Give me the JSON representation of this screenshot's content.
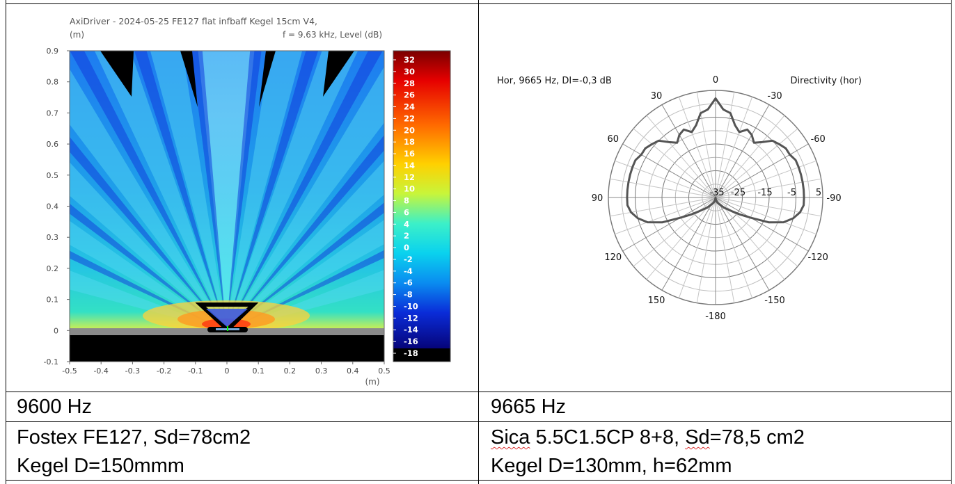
{
  "left_figure": {
    "title_line1": "AxiDriver - 2024-05-25 FE127 flat infbaff Kegel 15cm V4,",
    "y_unit": "(m)",
    "title_line2": "f = 9.63 kHz, Level  (dB)",
    "x_unit": "(m)",
    "x_ticks": [
      "-0.5",
      "-0.4",
      "-0.3",
      "-0.2",
      "-0.1",
      "0",
      "0.1",
      "0.2",
      "0.3",
      "0.4",
      "0.5"
    ],
    "y_ticks": [
      "0.9",
      "0.8",
      "0.7",
      "0.6",
      "0.5",
      "0.4",
      "0.3",
      "0.2",
      "0.1",
      "0",
      "-0.1"
    ],
    "colorbar_labels": [
      "32",
      "30",
      "28",
      "26",
      "24",
      "22",
      "20",
      "18",
      "16",
      "14",
      "12",
      "10",
      "8",
      "6",
      "4",
      "2",
      "0",
      "-2",
      "-4",
      "-6",
      "-8",
      "-10",
      "-12",
      "-14",
      "-16",
      "-18"
    ]
  },
  "right_figure": {
    "title_left": "Hor, 9665 Hz, DI=-0,3 dB",
    "title_right": "Directivity (hor)",
    "angle_labels": {
      "a0": "0",
      "a30": "30",
      "am30": "-30",
      "a60": "60",
      "am60": "-60",
      "a90": "90",
      "am90": "-90",
      "a120": "120",
      "am120": "-120",
      "a150": "150",
      "am150": "-150",
      "a180": "-180"
    },
    "radial_labels": [
      "-35",
      "-25",
      "-15",
      "-5",
      "5"
    ]
  },
  "chart_data": {
    "type": "line",
    "projection": "polar",
    "title": "Directivity (hor)",
    "subtitle": "Hor, 9665 Hz, DI=-0,3 dB",
    "radial_range_db": [
      -35,
      5
    ],
    "radial_ticks": [
      -35,
      -25,
      -15,
      -5,
      5
    ],
    "angle_ticks": [
      0,
      30,
      60,
      90,
      120,
      150,
      180,
      -150,
      -120,
      -90,
      -60,
      -30
    ],
    "series": [
      {
        "angle_deg": [
          0,
          5,
          10,
          15,
          20,
          25,
          30,
          35,
          40,
          45,
          50,
          55,
          60,
          65,
          70,
          75,
          80,
          85,
          90,
          95,
          100,
          105,
          110,
          115,
          120,
          125,
          130,
          140,
          150,
          160,
          170,
          180
        ],
        "level_db": [
          2,
          -2,
          -3,
          -7,
          -9,
          -7,
          -8,
          -10,
          -8,
          -5,
          -4,
          -3,
          -3,
          -2,
          -2,
          -2,
          -2,
          -2,
          -2,
          -2,
          -3,
          -5,
          -8,
          -13,
          -20,
          -24,
          -27,
          -30,
          -32,
          -33,
          -34,
          -35
        ]
      }
    ]
  },
  "table": {
    "row2_left": "9600 Hz",
    "row2_right": "9665 Hz",
    "row3_left_line1": "Fostex FE127, Sd=78cm2",
    "row3_left_line2": "Kegel D=150mmm",
    "row3_right_line1_w1": "Sica",
    "row3_right_line1_w2": " 5.5C1.5CP 8+8, ",
    "row3_right_line1_w3": "Sd",
    "row3_right_line1_w4": "=78,5 cm2",
    "row3_right_line2": "Kegel D=130mm, h=62mm"
  }
}
